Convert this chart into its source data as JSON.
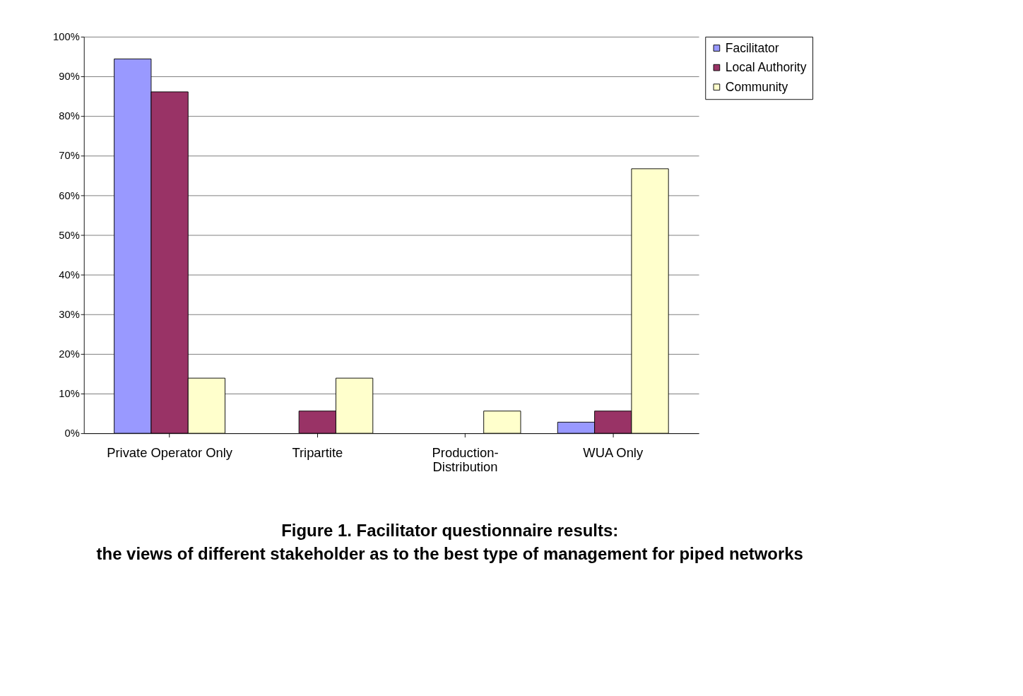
{
  "chart_data": {
    "type": "bar",
    "title": "Figure 1. Facilitator questionnaire results:",
    "subtitle": "the views of different stakeholder as to the best type of management for piped networks",
    "categories": [
      "Private Operator Only",
      "Tripartite",
      "Production-Distribution",
      "WUA Only"
    ],
    "series": [
      {
        "name": "Facilitator",
        "color": "#9999ff",
        "values": [
          94.4,
          null,
          null,
          2.8
        ]
      },
      {
        "name": "Local Authority",
        "color": "#993366",
        "values": [
          86.1,
          5.6,
          null,
          5.6
        ]
      },
      {
        "name": "Community",
        "color": "#ffffcc",
        "values": [
          13.9,
          13.9,
          5.6,
          66.7
        ]
      }
    ],
    "ylim": [
      0,
      100
    ],
    "yticks": [
      {
        "value": 0,
        "label": "0%"
      },
      {
        "value": 10,
        "label": "10%"
      },
      {
        "value": 20,
        "label": "20%"
      },
      {
        "value": 30,
        "label": "30%"
      },
      {
        "value": 40,
        "label": "40%"
      },
      {
        "value": 50,
        "label": "50%"
      },
      {
        "value": 60,
        "label": "60%"
      },
      {
        "value": 70,
        "label": "70%"
      },
      {
        "value": 80,
        "label": "80%"
      },
      {
        "value": 90,
        "label": "90%"
      },
      {
        "value": 100,
        "label": "100%"
      }
    ],
    "grid": "y",
    "legend": "right"
  }
}
